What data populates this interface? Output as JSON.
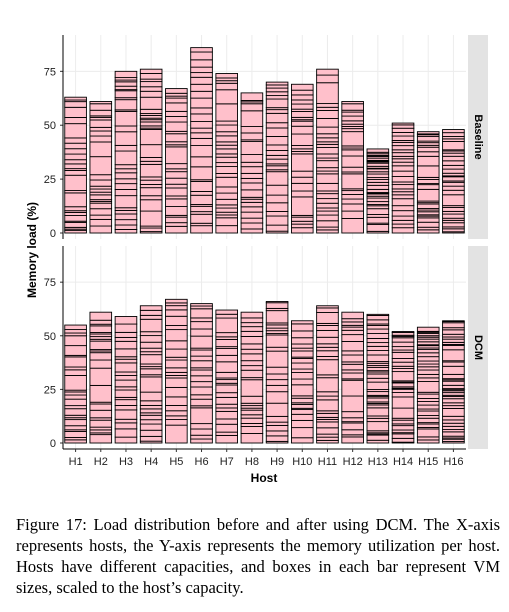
{
  "chart_data": {
    "type": "bar",
    "variant": "stacked-bar-faceted",
    "xlabel": "Host",
    "ylabel": "Memory load (%)",
    "ylim": [
      0,
      90
    ],
    "yticks": [
      0,
      25,
      50,
      75
    ],
    "grid": true,
    "bar_color": "#ffc0cb",
    "box_border_color": "#000000",
    "categories": [
      "H1",
      "H2",
      "H3",
      "H4",
      "H5",
      "H6",
      "H7",
      "H8",
      "H9",
      "H10",
      "H11",
      "H12",
      "H13",
      "H14",
      "H15",
      "H16"
    ],
    "facets": [
      {
        "label": "Baseline",
        "values": [
          63,
          61,
          75,
          76,
          67,
          86,
          74,
          65,
          70,
          69,
          76,
          61,
          39,
          51,
          47,
          48
        ],
        "box_counts": [
          26,
          24,
          28,
          30,
          26,
          28,
          28,
          24,
          27,
          26,
          30,
          24,
          34,
          28,
          28,
          30
        ]
      },
      {
        "label": "DCM",
        "values": [
          55,
          61,
          59,
          64,
          67,
          65,
          62,
          61,
          66,
          57,
          64,
          61,
          60,
          52,
          54,
          57
        ],
        "box_counts": [
          24,
          24,
          22,
          26,
          22,
          24,
          24,
          24,
          24,
          24,
          26,
          24,
          38,
          32,
          36,
          40
        ]
      }
    ]
  },
  "caption": "Figure 17: Load distribution before and after using DCM. The X-axis represents hosts, the Y-axis represents the memory utilization per host. Hosts have different capacities, and boxes in each bar represent VM sizes, scaled to the host’s capacity."
}
